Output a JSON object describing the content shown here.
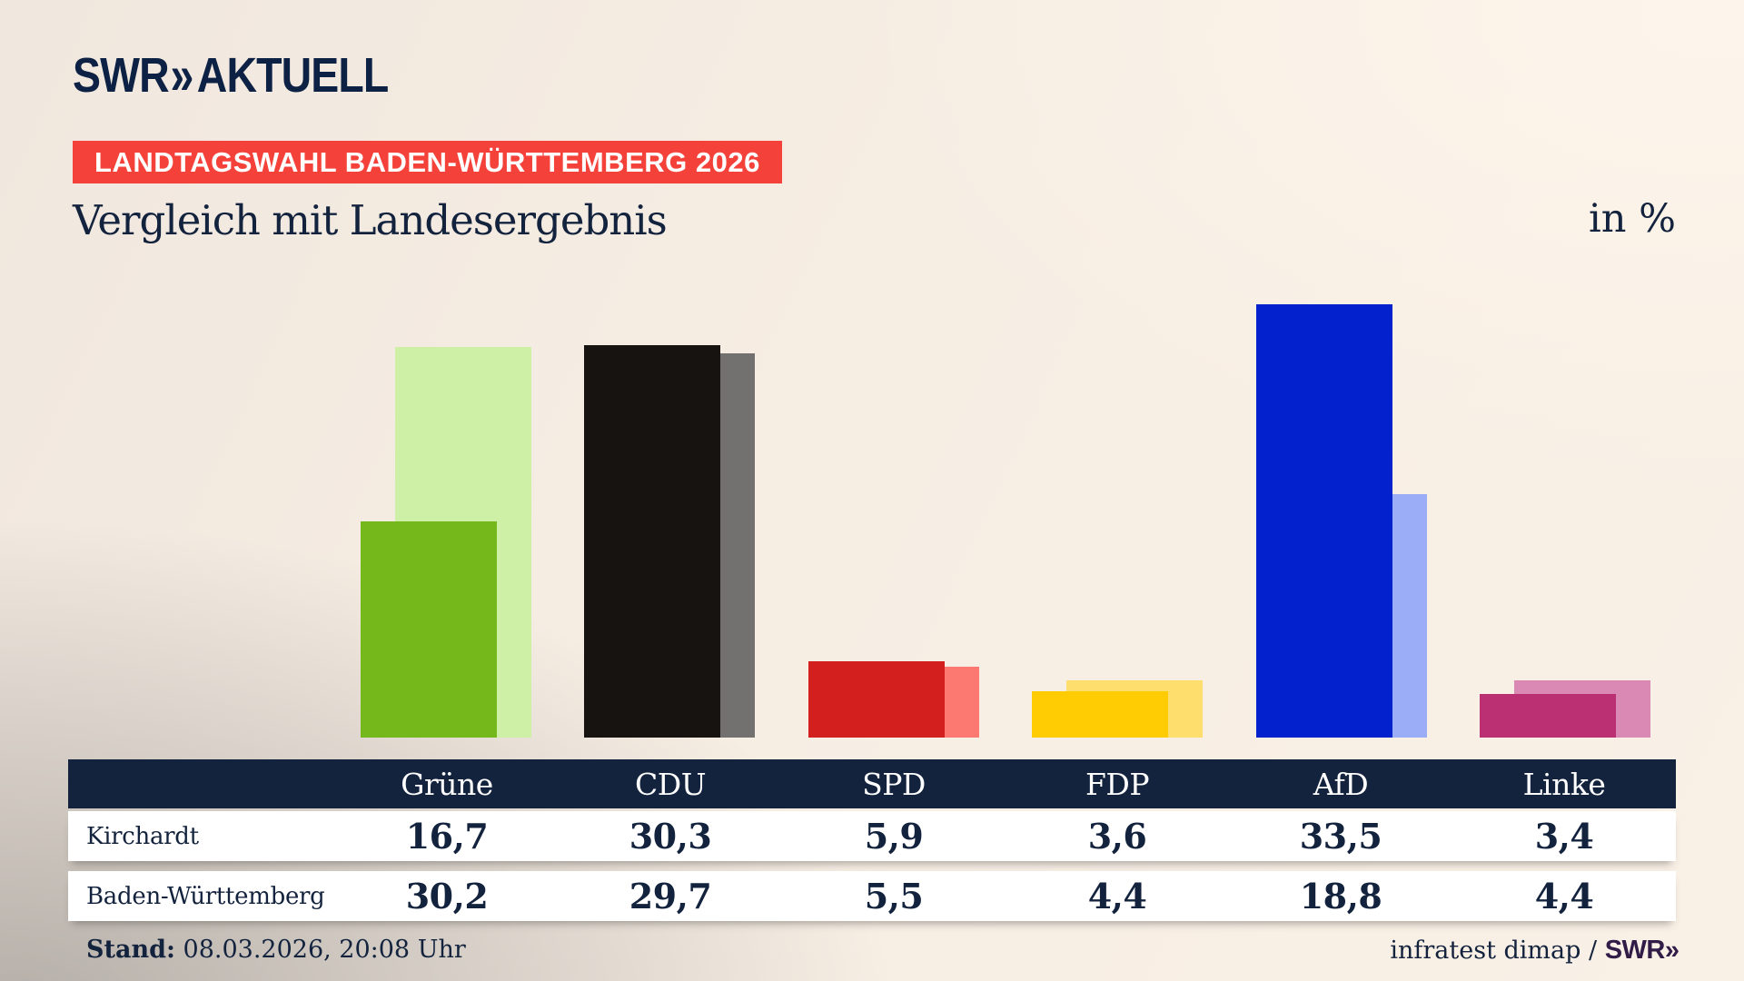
{
  "header": {
    "logo_brand": "SWR",
    "logo_chevrons": "»",
    "logo_title": "AKTUELL",
    "badge": "LANDTAGSWAHL BADEN-WÜRTTEMBERG 2026",
    "title": "Vergleich mit Landesergebnis",
    "unit_label": "in %"
  },
  "chart_data": {
    "type": "bar",
    "title": "Vergleich mit Landesergebnis",
    "unit": "%",
    "categories": [
      "Grüne",
      "CDU",
      "SPD",
      "FDP",
      "AfD",
      "Linke"
    ],
    "series": [
      {
        "name": "Kirchardt",
        "values": [
          16.7,
          30.3,
          5.9,
          3.6,
          33.5,
          3.4
        ]
      },
      {
        "name": "Baden-Württemberg",
        "values": [
          30.2,
          29.7,
          5.5,
          4.4,
          18.8,
          4.4
        ]
      }
    ],
    "colors": {
      "front": [
        "#74b81b",
        "#161310",
        "#d41f1f",
        "#ffcb02",
        "#0321cd",
        "#ba3072"
      ],
      "back": [
        "#cdf0a6",
        "#737170",
        "#fb7971",
        "#fedf6d",
        "#9cadf7",
        "#d989b4"
      ]
    },
    "ylim": [
      0,
      35
    ],
    "grid": false,
    "legend": "table-below",
    "value_format": "de-comma"
  },
  "table": {
    "columns": [
      "Grüne",
      "CDU",
      "SPD",
      "FDP",
      "AfD",
      "Linke"
    ],
    "rows": [
      {
        "label": "Kirchardt",
        "values": [
          "16,7",
          "30,3",
          "5,9",
          "3,6",
          "33,5",
          "3,4"
        ]
      },
      {
        "label": "Baden-Württemberg",
        "values": [
          "30,2",
          "29,7",
          "5,5",
          "4,4",
          "18,8",
          "4,4"
        ]
      }
    ]
  },
  "footer": {
    "stand_label": "Stand:",
    "stand_value": "08.03.2026, 20:08 Uhr",
    "source_text": "infratest dimap / ",
    "source_brand": "SWR",
    "source_chevrons": "»"
  },
  "colors": {
    "navy": "#13233e",
    "badge_red": "#f4423b",
    "background_cream": "#f8efe5",
    "footer_brand": "#311b47"
  }
}
